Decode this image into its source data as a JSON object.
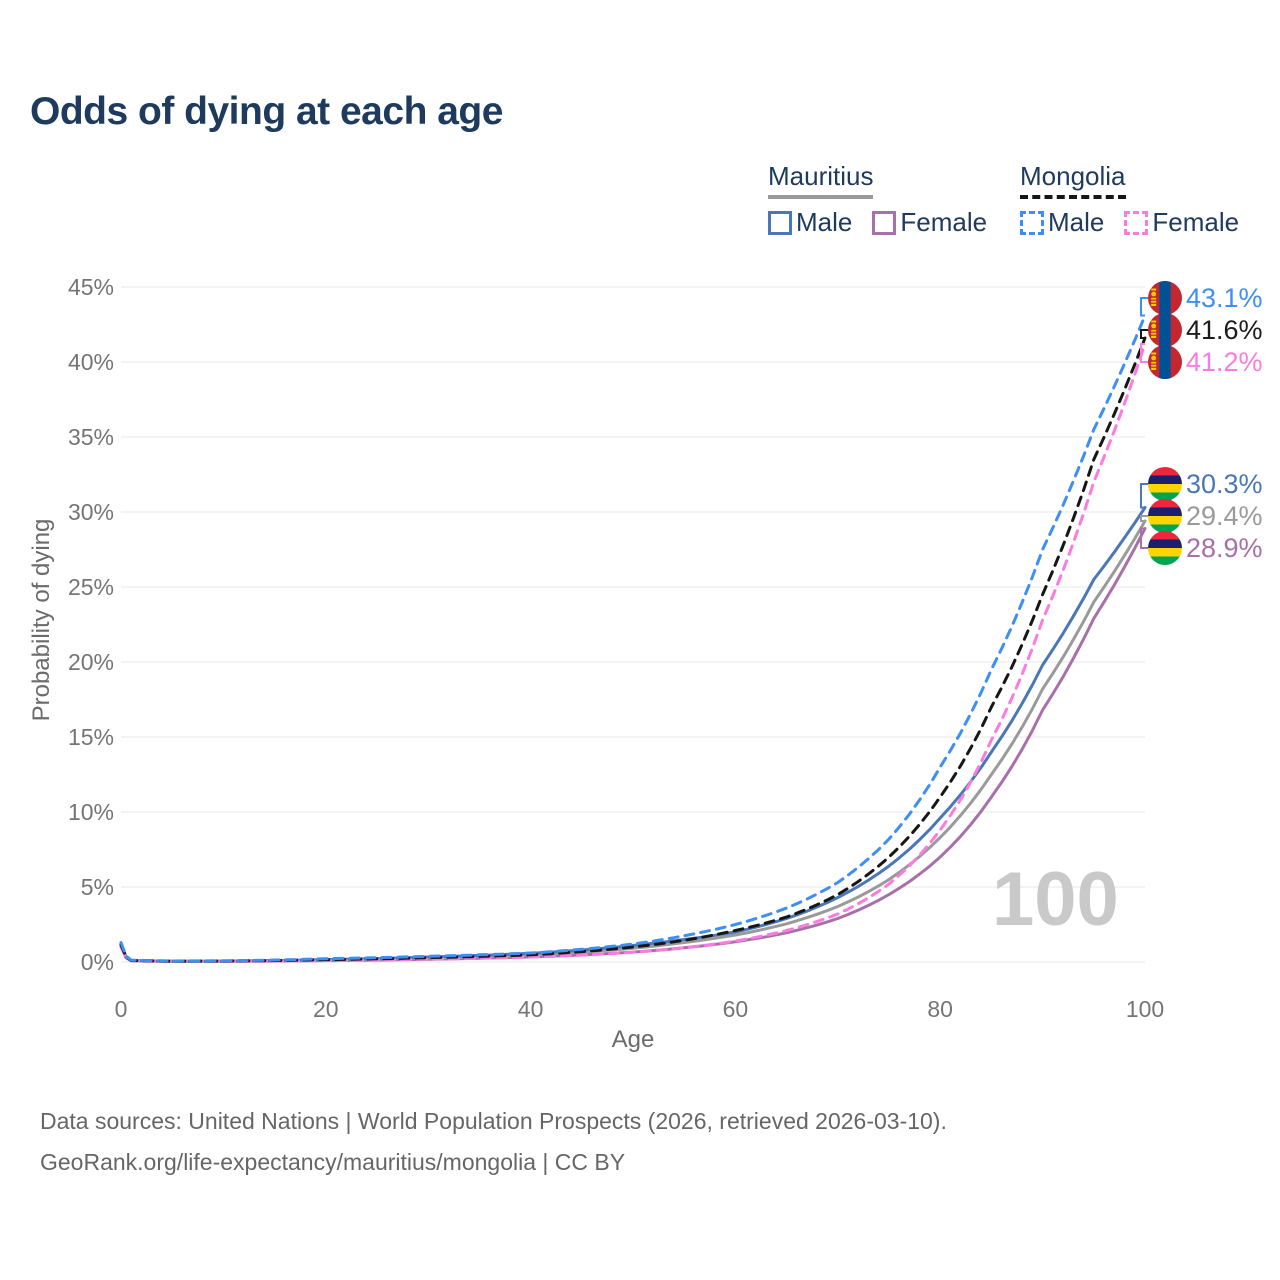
{
  "title": "Odds of dying at each age",
  "legend": {
    "groups": [
      {
        "name": "Mauritius",
        "line_style": "solid",
        "underline_color": "#9a9a9a",
        "items": [
          {
            "label": "Male",
            "color": "#4a77b8",
            "dashed": false
          },
          {
            "label": "Female",
            "color": "#a770a9",
            "dashed": false
          }
        ]
      },
      {
        "name": "Mongolia",
        "line_style": "dashed",
        "underline_color": "#161616",
        "items": [
          {
            "label": "Male",
            "color": "#3e8ef7",
            "dashed": true
          },
          {
            "label": "Female",
            "color": "#fb7be0",
            "dashed": true
          }
        ]
      }
    ]
  },
  "chart_data": {
    "type": "line",
    "title": "Odds of dying at each age",
    "xlabel": "Age",
    "ylabel": "Probability of dying",
    "xlim": [
      0,
      100
    ],
    "ylim": [
      0,
      45
    ],
    "xticks": [
      0,
      20,
      40,
      60,
      80,
      100
    ],
    "yticks": [
      "0%",
      "5%",
      "10%",
      "15%",
      "20%",
      "25%",
      "30%",
      "35%",
      "40%",
      "45%"
    ],
    "grid": "horizontal",
    "grid_color": "#ececec",
    "watermark": "100",
    "legend_position": "top-right",
    "series": [
      {
        "name": "Mauritius female",
        "country": "mauritius",
        "dashed": false,
        "color": "#a770a9",
        "end_value": 28.9,
        "end_label": "28.9%",
        "label_color": "#a770a9",
        "flag": "mauritius",
        "points": [
          [
            0,
            1.0
          ],
          [
            1,
            0.08
          ],
          [
            5,
            0.04
          ],
          [
            10,
            0.04
          ],
          [
            15,
            0.06
          ],
          [
            20,
            0.09
          ],
          [
            30,
            0.18
          ],
          [
            40,
            0.34
          ],
          [
            50,
            0.66
          ],
          [
            55,
            0.95
          ],
          [
            60,
            1.35
          ],
          [
            65,
            1.95
          ],
          [
            70,
            2.9
          ],
          [
            75,
            4.5
          ],
          [
            80,
            7.0
          ],
          [
            85,
            11.0
          ],
          [
            90,
            16.8
          ],
          [
            95,
            22.9
          ],
          [
            100,
            28.9
          ]
        ]
      },
      {
        "name": "Mauritius both sexes",
        "country": "mauritius",
        "dashed": false,
        "color": "#9a9a9a",
        "end_value": 29.4,
        "end_label": "29.4%",
        "label_color": "#9a9a9a",
        "flag": "mauritius",
        "points": [
          [
            0,
            1.1
          ],
          [
            1,
            0.09
          ],
          [
            5,
            0.05
          ],
          [
            10,
            0.05
          ],
          [
            15,
            0.08
          ],
          [
            20,
            0.13
          ],
          [
            30,
            0.27
          ],
          [
            40,
            0.48
          ],
          [
            50,
            0.92
          ],
          [
            55,
            1.3
          ],
          [
            60,
            1.8
          ],
          [
            65,
            2.55
          ],
          [
            70,
            3.7
          ],
          [
            75,
            5.5
          ],
          [
            80,
            8.3
          ],
          [
            85,
            12.5
          ],
          [
            90,
            18.2
          ],
          [
            95,
            24.0
          ],
          [
            100,
            29.4
          ]
        ]
      },
      {
        "name": "Mauritius male",
        "country": "mauritius",
        "dashed": false,
        "color": "#4a77b8",
        "end_value": 30.3,
        "end_label": "30.3%",
        "label_color": "#4a77b8",
        "flag": "mauritius",
        "points": [
          [
            0,
            1.2
          ],
          [
            1,
            0.1
          ],
          [
            5,
            0.05
          ],
          [
            10,
            0.06
          ],
          [
            15,
            0.1
          ],
          [
            20,
            0.16
          ],
          [
            30,
            0.33
          ],
          [
            40,
            0.58
          ],
          [
            50,
            1.1
          ],
          [
            55,
            1.5
          ],
          [
            60,
            2.0
          ],
          [
            65,
            2.9
          ],
          [
            70,
            4.3
          ],
          [
            75,
            6.4
          ],
          [
            80,
            9.6
          ],
          [
            85,
            14.0
          ],
          [
            90,
            19.8
          ],
          [
            95,
            25.5
          ],
          [
            100,
            30.3
          ]
        ]
      },
      {
        "name": "Mongolia female",
        "country": "mongolia",
        "dashed": true,
        "color": "#fb7be0",
        "end_value": 41.2,
        "end_label": "41.2%",
        "label_color": "#fb7be0",
        "flag": "mongolia",
        "points": [
          [
            0,
            1.0
          ],
          [
            1,
            0.09
          ],
          [
            5,
            0.05
          ],
          [
            10,
            0.05
          ],
          [
            15,
            0.07
          ],
          [
            20,
            0.1
          ],
          [
            30,
            0.19
          ],
          [
            40,
            0.33
          ],
          [
            50,
            0.65
          ],
          [
            55,
            0.95
          ],
          [
            60,
            1.4
          ],
          [
            65,
            2.1
          ],
          [
            70,
            3.2
          ],
          [
            75,
            5.2
          ],
          [
            80,
            8.8
          ],
          [
            85,
            14.8
          ],
          [
            90,
            22.8
          ],
          [
            95,
            32.0
          ],
          [
            100,
            41.2
          ]
        ]
      },
      {
        "name": "Mongolia both sexes",
        "country": "mongolia",
        "dashed": true,
        "color": "#161616",
        "end_value": 41.6,
        "end_label": "41.6%",
        "label_color": "#1c1c1c",
        "flag": "mongolia",
        "points": [
          [
            0,
            1.15
          ],
          [
            1,
            0.1
          ],
          [
            5,
            0.06
          ],
          [
            10,
            0.07
          ],
          [
            15,
            0.1
          ],
          [
            20,
            0.16
          ],
          [
            30,
            0.29
          ],
          [
            40,
            0.48
          ],
          [
            50,
            1.0
          ],
          [
            55,
            1.45
          ],
          [
            60,
            2.1
          ],
          [
            65,
            3.0
          ],
          [
            70,
            4.5
          ],
          [
            75,
            7.0
          ],
          [
            80,
            11.0
          ],
          [
            85,
            17.0
          ],
          [
            90,
            24.5
          ],
          [
            95,
            33.5
          ],
          [
            100,
            41.6
          ]
        ]
      },
      {
        "name": "Mongolia male",
        "country": "mongolia",
        "dashed": true,
        "color": "#3e8ef7",
        "end_value": 43.1,
        "end_label": "43.1%",
        "label_color": "#3e8ef7",
        "flag": "mongolia",
        "points": [
          [
            0,
            1.3
          ],
          [
            1,
            0.12
          ],
          [
            5,
            0.07
          ],
          [
            10,
            0.08
          ],
          [
            15,
            0.13
          ],
          [
            20,
            0.22
          ],
          [
            30,
            0.38
          ],
          [
            40,
            0.6
          ],
          [
            50,
            1.2
          ],
          [
            55,
            1.75
          ],
          [
            60,
            2.5
          ],
          [
            65,
            3.6
          ],
          [
            70,
            5.3
          ],
          [
            75,
            8.2
          ],
          [
            80,
            13.0
          ],
          [
            85,
            19.5
          ],
          [
            90,
            27.5
          ],
          [
            95,
            35.5
          ],
          [
            100,
            43.1
          ]
        ]
      }
    ],
    "flag_colors": {
      "mauritius": [
        "#EA2839",
        "#1A206D",
        "#FFD500",
        "#00A551"
      ],
      "mongolia": {
        "red": "#C4272F",
        "blue": "#015197",
        "yellow": "#F9CF02"
      }
    }
  },
  "footer": {
    "line1": "Data sources: United Nations | World Population Prospects (2026, retrieved 2026-03-10).",
    "line2": "GeoRank.org/life-expectancy/mauritius/mongolia | CC BY"
  }
}
